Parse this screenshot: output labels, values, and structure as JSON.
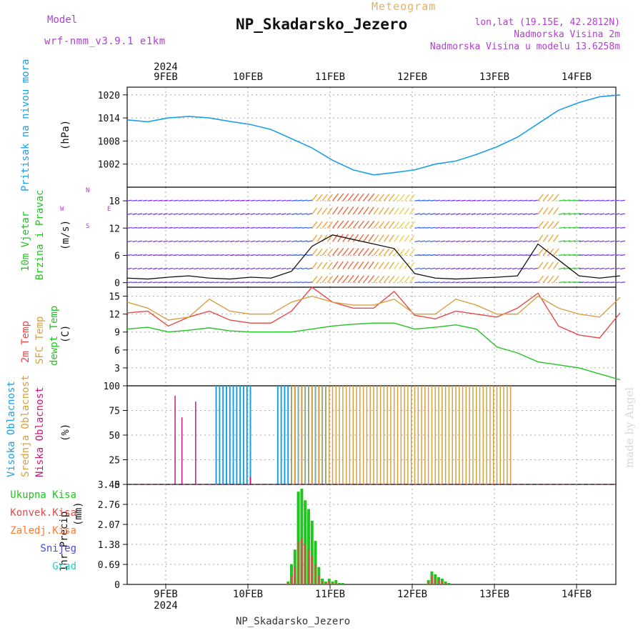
{
  "header": {
    "meteogram_label": "Meteogram",
    "station_title": "NP_Skadarsko_Jezero",
    "model_label": "Model",
    "model_name": "wrf-nmm_v3.9.1 e1km",
    "lonlat_text": "lon,lat (19.15E, 42.2812N)",
    "altitude_text": "Nadmorska Visina 2m",
    "model_altitude_text": "Nadmorska Visina u modelu 13.6258m",
    "footer_station": "NP_Skadarsko_Jezero",
    "watermark": "made by Angel"
  },
  "colors": {
    "pressure": "#1ba0e6",
    "temp2m": "#e84848",
    "sfc_temp": "#d8a040",
    "dewpoint": "#22c422",
    "high_cloud": "#1ba0e6",
    "mid_cloud": "#d8a040",
    "low_cloud": "#c8187a",
    "total_precip": "#22c422",
    "convective_precip": "#e84848",
    "frozen_precip": "#ff7a30",
    "snow": "#4848e0",
    "graupel": "#30c8c0",
    "model_label": "#b040d0"
  },
  "time_axis": {
    "year": "2024",
    "dates": [
      "9FEB",
      "10FEB",
      "11FEB",
      "12FEB",
      "13FEB",
      "14FEB"
    ]
  },
  "chart_data": [
    {
      "type": "line",
      "panel": "pressure",
      "ylabel": "Pritisak na nivou mora",
      "unit": "(hPa)",
      "ylim": [
        996,
        1022
      ],
      "yticks": [
        "1002",
        "1008",
        "1014",
        "1020"
      ],
      "x_hours": [
        0,
        6,
        12,
        18,
        24,
        30,
        36,
        42,
        48,
        54,
        60,
        66,
        72,
        78,
        84,
        90,
        96,
        102,
        108,
        114,
        120,
        126,
        132,
        138,
        144
      ],
      "series": [
        {
          "values": [
            1013.5,
            1013.0,
            1014.0,
            1014.4,
            1014.0,
            1013.1,
            1012.3,
            1011.0,
            1008.6,
            1006.2,
            1003.0,
            1000.5,
            999.2,
            999.8,
            1000.5,
            1002.0,
            1002.8,
            1004.5,
            1006.5,
            1009.0,
            1012.5,
            1016.0,
            1018.0,
            1019.5,
            1020.0
          ]
        }
      ]
    },
    {
      "type": "line",
      "panel": "wind",
      "ylabel": "10m Vjetar Brzina i Pravac",
      "unit": "(m/s)",
      "direction_key": "W <- -> E, N / S",
      "ylim": [
        -1,
        21
      ],
      "yticks": [
        "0",
        "6",
        "12",
        "18"
      ],
      "x_hours": [
        0,
        6,
        12,
        18,
        24,
        30,
        36,
        42,
        48,
        54,
        60,
        66,
        72,
        78,
        84,
        90,
        96,
        102,
        108,
        114,
        120,
        126,
        132,
        138,
        144
      ],
      "series": [
        {
          "values": [
            1.0,
            0.8,
            1.2,
            1.5,
            1.0,
            0.8,
            1.2,
            1.0,
            2.5,
            8.0,
            10.5,
            9.5,
            8.5,
            7.5,
            2.0,
            1.0,
            0.8,
            1.0,
            1.2,
            1.5,
            8.5,
            5.0,
            1.5,
            1.0,
            1.5
          ]
        }
      ]
    },
    {
      "type": "line",
      "panel": "temperature",
      "ylabel": "2m Temp / SFC Temp / dewpt Temp",
      "unit": "(C)",
      "ylim": [
        0,
        16.5
      ],
      "yticks": [
        "3",
        "6",
        "9",
        "12",
        "15"
      ],
      "x_hours": [
        0,
        6,
        12,
        18,
        24,
        30,
        36,
        42,
        48,
        54,
        60,
        66,
        72,
        78,
        84,
        90,
        96,
        102,
        108,
        114,
        120,
        126,
        132,
        138,
        144
      ],
      "series": [
        {
          "name": "2m Temp",
          "values": [
            12.2,
            12.5,
            10.0,
            11.5,
            12.5,
            11.0,
            10.5,
            10.5,
            12.5,
            16.5,
            14.0,
            13.0,
            13.0,
            15.8,
            11.8,
            11.2,
            12.5,
            12.0,
            11.5,
            13.0,
            15.5,
            10.0,
            8.5,
            8.0,
            12.2
          ]
        },
        {
          "name": "SFC Temp",
          "values": [
            14.0,
            13.0,
            11.0,
            11.5,
            14.5,
            12.5,
            12.0,
            12.0,
            14.0,
            15.0,
            14.0,
            13.5,
            13.5,
            14.5,
            12.0,
            12.0,
            14.5,
            13.5,
            12.0,
            12.0,
            15.0,
            13.0,
            12.0,
            11.5,
            14.8
          ]
        },
        {
          "name": "dewpt Temp",
          "values": [
            9.5,
            9.8,
            9.0,
            9.3,
            9.7,
            9.2,
            9.0,
            9.0,
            9.0,
            9.5,
            10.0,
            10.3,
            10.5,
            10.5,
            9.5,
            9.8,
            10.2,
            9.5,
            6.5,
            5.5,
            4.0,
            3.5,
            3.0,
            2.0,
            1.0
          ]
        }
      ]
    },
    {
      "type": "bar",
      "panel": "clouds",
      "ylabel": "Visoka Oblacnost / Srednja Oblacnost / Niska Oblacnost",
      "unit": "(%)",
      "ylim": [
        0,
        100
      ],
      "yticks": [
        "0",
        "25",
        "50",
        "75",
        "100"
      ],
      "series": [
        {
          "name": "Visoka Oblacnost",
          "segments_hours": [
            [
              26,
              36
            ],
            [
              44,
              58
            ]
          ],
          "value": 100
        },
        {
          "name": "Srednja Oblacnost",
          "segments_hours": [
            [
              48,
              112
            ]
          ],
          "value": 100
        },
        {
          "name": "Niska Oblacnost",
          "spikes": [
            [
              14,
              90
            ],
            [
              16,
              68
            ],
            [
              20,
              84
            ],
            [
              36,
              8
            ]
          ]
        }
      ]
    },
    {
      "type": "bar",
      "panel": "precipitation",
      "ylabel": "1hr Precip",
      "unit": "(mm)",
      "ylim": [
        0,
        3.45
      ],
      "yticks": [
        "0",
        "0.69",
        "1.38",
        "2.07",
        "2.76",
        "3.45"
      ],
      "legend": [
        "Ukupna Kisa",
        "Konvek.Kisa",
        "Zaledj.Kisa",
        "Snijeg",
        "Grad"
      ],
      "x_hours": [
        47,
        48,
        49,
        50,
        51,
        52,
        53,
        54,
        55,
        56,
        57,
        58,
        59,
        60,
        61,
        62,
        63,
        88,
        89,
        90,
        91,
        92,
        93,
        94
      ],
      "series": [
        {
          "name": "Ukupna Kisa",
          "values": [
            0.1,
            0.7,
            1.2,
            3.2,
            3.3,
            2.9,
            2.6,
            2.2,
            1.5,
            0.6,
            0.2,
            0.1,
            0.2,
            0.1,
            0.15,
            0.05,
            0.05,
            0.15,
            0.45,
            0.35,
            0.25,
            0.2,
            0.1,
            0.05
          ]
        },
        {
          "name": "Konvek.Kisa",
          "values": [
            0.05,
            0.3,
            0.6,
            1.5,
            1.6,
            1.4,
            1.2,
            1.0,
            0.7,
            0.3,
            0.1,
            0.05,
            0.1,
            0.05,
            0.05,
            0.02,
            0.02,
            0.1,
            0.3,
            0.2,
            0.15,
            0.1,
            0.05,
            0.02
          ]
        }
      ]
    }
  ]
}
